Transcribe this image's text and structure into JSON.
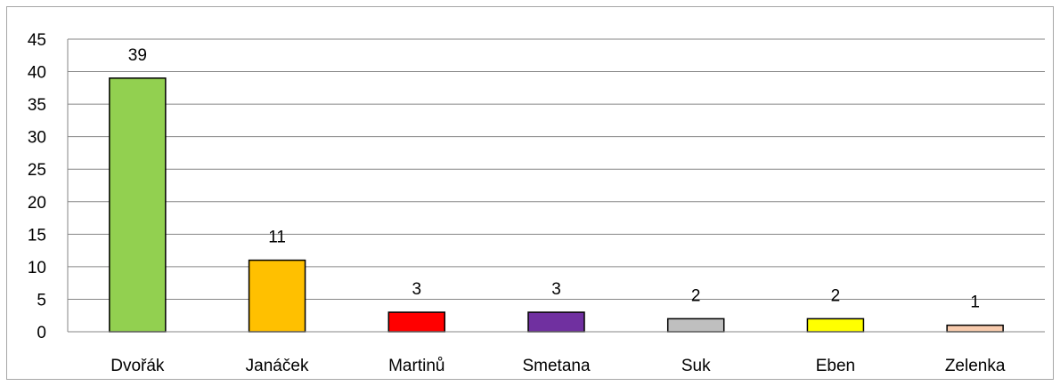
{
  "chart_data": {
    "type": "bar",
    "categories": [
      "Dvořák",
      "Janáček",
      "Martinů",
      "Smetana",
      "Suk",
      "Eben",
      "Zelenka"
    ],
    "values": [
      39,
      11,
      3,
      3,
      2,
      2,
      1
    ],
    "colors": [
      "#92d050",
      "#ffc000",
      "#ff0000",
      "#7030a0",
      "#bfbfbf",
      "#ffff00",
      "#f8cbad"
    ],
    "data_labels": [
      "39",
      "11",
      "3",
      "3",
      "2",
      "2",
      "1"
    ],
    "ylim": [
      0,
      45
    ],
    "yticks": [
      "0",
      "5",
      "10",
      "15",
      "20",
      "25",
      "30",
      "35",
      "40",
      "45"
    ],
    "grid": true,
    "legend": "none",
    "title": "",
    "xlabel": "",
    "ylabel": ""
  }
}
